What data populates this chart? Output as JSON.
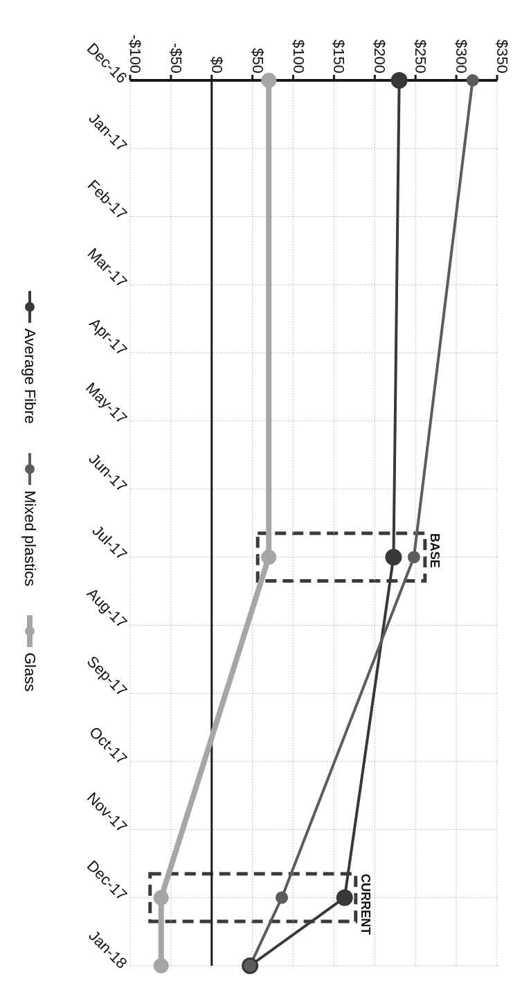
{
  "chart_data": {
    "type": "line",
    "orientation": "horizontal",
    "categories": [
      "Dec-16",
      "Jan-17",
      "Feb-17",
      "Mar-17",
      "Apr-17",
      "May-17",
      "Jun-17",
      "Jul-17",
      "Aug-17",
      "Sep-17",
      "Oct-17",
      "Nov-17",
      "Dec-17",
      "Jan-18"
    ],
    "series": [
      {
        "name": "Average Fibre",
        "color": "#383838",
        "values": [
          230,
          null,
          null,
          null,
          null,
          null,
          null,
          223,
          null,
          null,
          null,
          null,
          163,
          47
        ]
      },
      {
        "name": "Mixed plastics",
        "color": "#5c5c5c",
        "values": [
          320,
          null,
          null,
          null,
          null,
          null,
          null,
          248,
          null,
          null,
          null,
          null,
          86,
          47
        ]
      },
      {
        "name": "Glass",
        "color": "#a6a6a6",
        "values": [
          70,
          null,
          null,
          null,
          null,
          null,
          null,
          70,
          null,
          null,
          null,
          null,
          -62,
          -62
        ]
      }
    ],
    "xlim": [
      -100,
      350
    ],
    "xticks": [
      {
        "value": -100,
        "label": "-$100"
      },
      {
        "value": -50,
        "label": "-$50"
      },
      {
        "value": 0,
        "label": "$0"
      },
      {
        "value": 50,
        "label": "$50"
      },
      {
        "value": 100,
        "label": "$100"
      },
      {
        "value": 150,
        "label": "$150"
      },
      {
        "value": 200,
        "label": "$200"
      },
      {
        "value": 250,
        "label": "$250"
      },
      {
        "value": 300,
        "label": "$300"
      },
      {
        "value": 350,
        "label": "$350"
      }
    ],
    "ref_lines": [
      {
        "axis": "x",
        "value": 0,
        "color": "#1a1a1a"
      }
    ],
    "annotations": [
      {
        "text": "BASE",
        "y": "Jul-17",
        "x": 248
      },
      {
        "text": "CURRENT",
        "y": "Dec-17",
        "x": 163
      }
    ],
    "grid": true,
    "legend": "left",
    "marker": "circle",
    "line_style": "solid"
  }
}
